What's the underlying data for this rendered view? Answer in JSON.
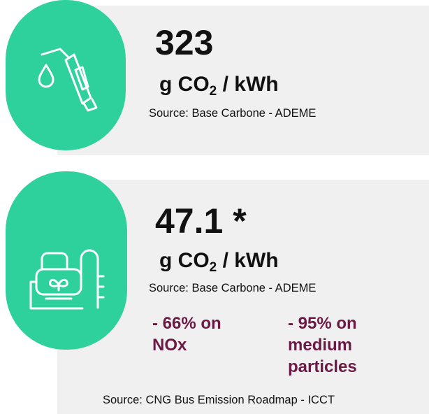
{
  "cards": [
    {
      "value": "323",
      "unit": {
        "main": "g CO",
        "sub": "2",
        "rest": "/ kWh"
      },
      "source": "Source: Base Carbone - ADEME"
    },
    {
      "value": "47.1 *",
      "unit": {
        "main": "g CO",
        "sub": "2",
        "rest": "/ kWh"
      },
      "source": "Source: Base Carbone - ADEME",
      "notes": [
        "- 66% on NOx",
        "- 95% on medium particles"
      ],
      "notes_source": "Source: CNG Bus Emission Roadmap - ICCT"
    }
  ]
}
